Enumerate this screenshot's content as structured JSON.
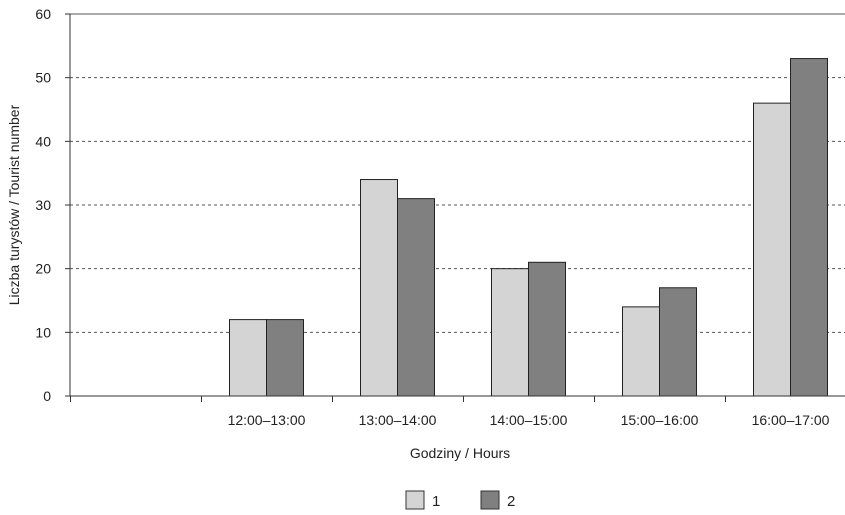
{
  "chart_data": {
    "type": "bar",
    "title": "",
    "xlabel": "Godziny / Hours",
    "ylabel": "Liczba turystów / Tourist number",
    "ylim": [
      0,
      60
    ],
    "yticks": [
      0,
      10,
      20,
      30,
      40,
      50,
      60
    ],
    "grid": "dashed horizontal",
    "legend_position": "bottom-center",
    "categories": [
      "",
      "12:00–13:00",
      "13:00–14:00",
      "14:00–15:00",
      "15:00–16:00",
      "16:00–17:00"
    ],
    "series": [
      {
        "name": "1",
        "color": "#d4d4d4",
        "values": [
          null,
          12,
          34,
          20,
          14,
          46
        ]
      },
      {
        "name": "2",
        "color": "#808080",
        "values": [
          null,
          12,
          31,
          21,
          17,
          53
        ]
      }
    ]
  }
}
